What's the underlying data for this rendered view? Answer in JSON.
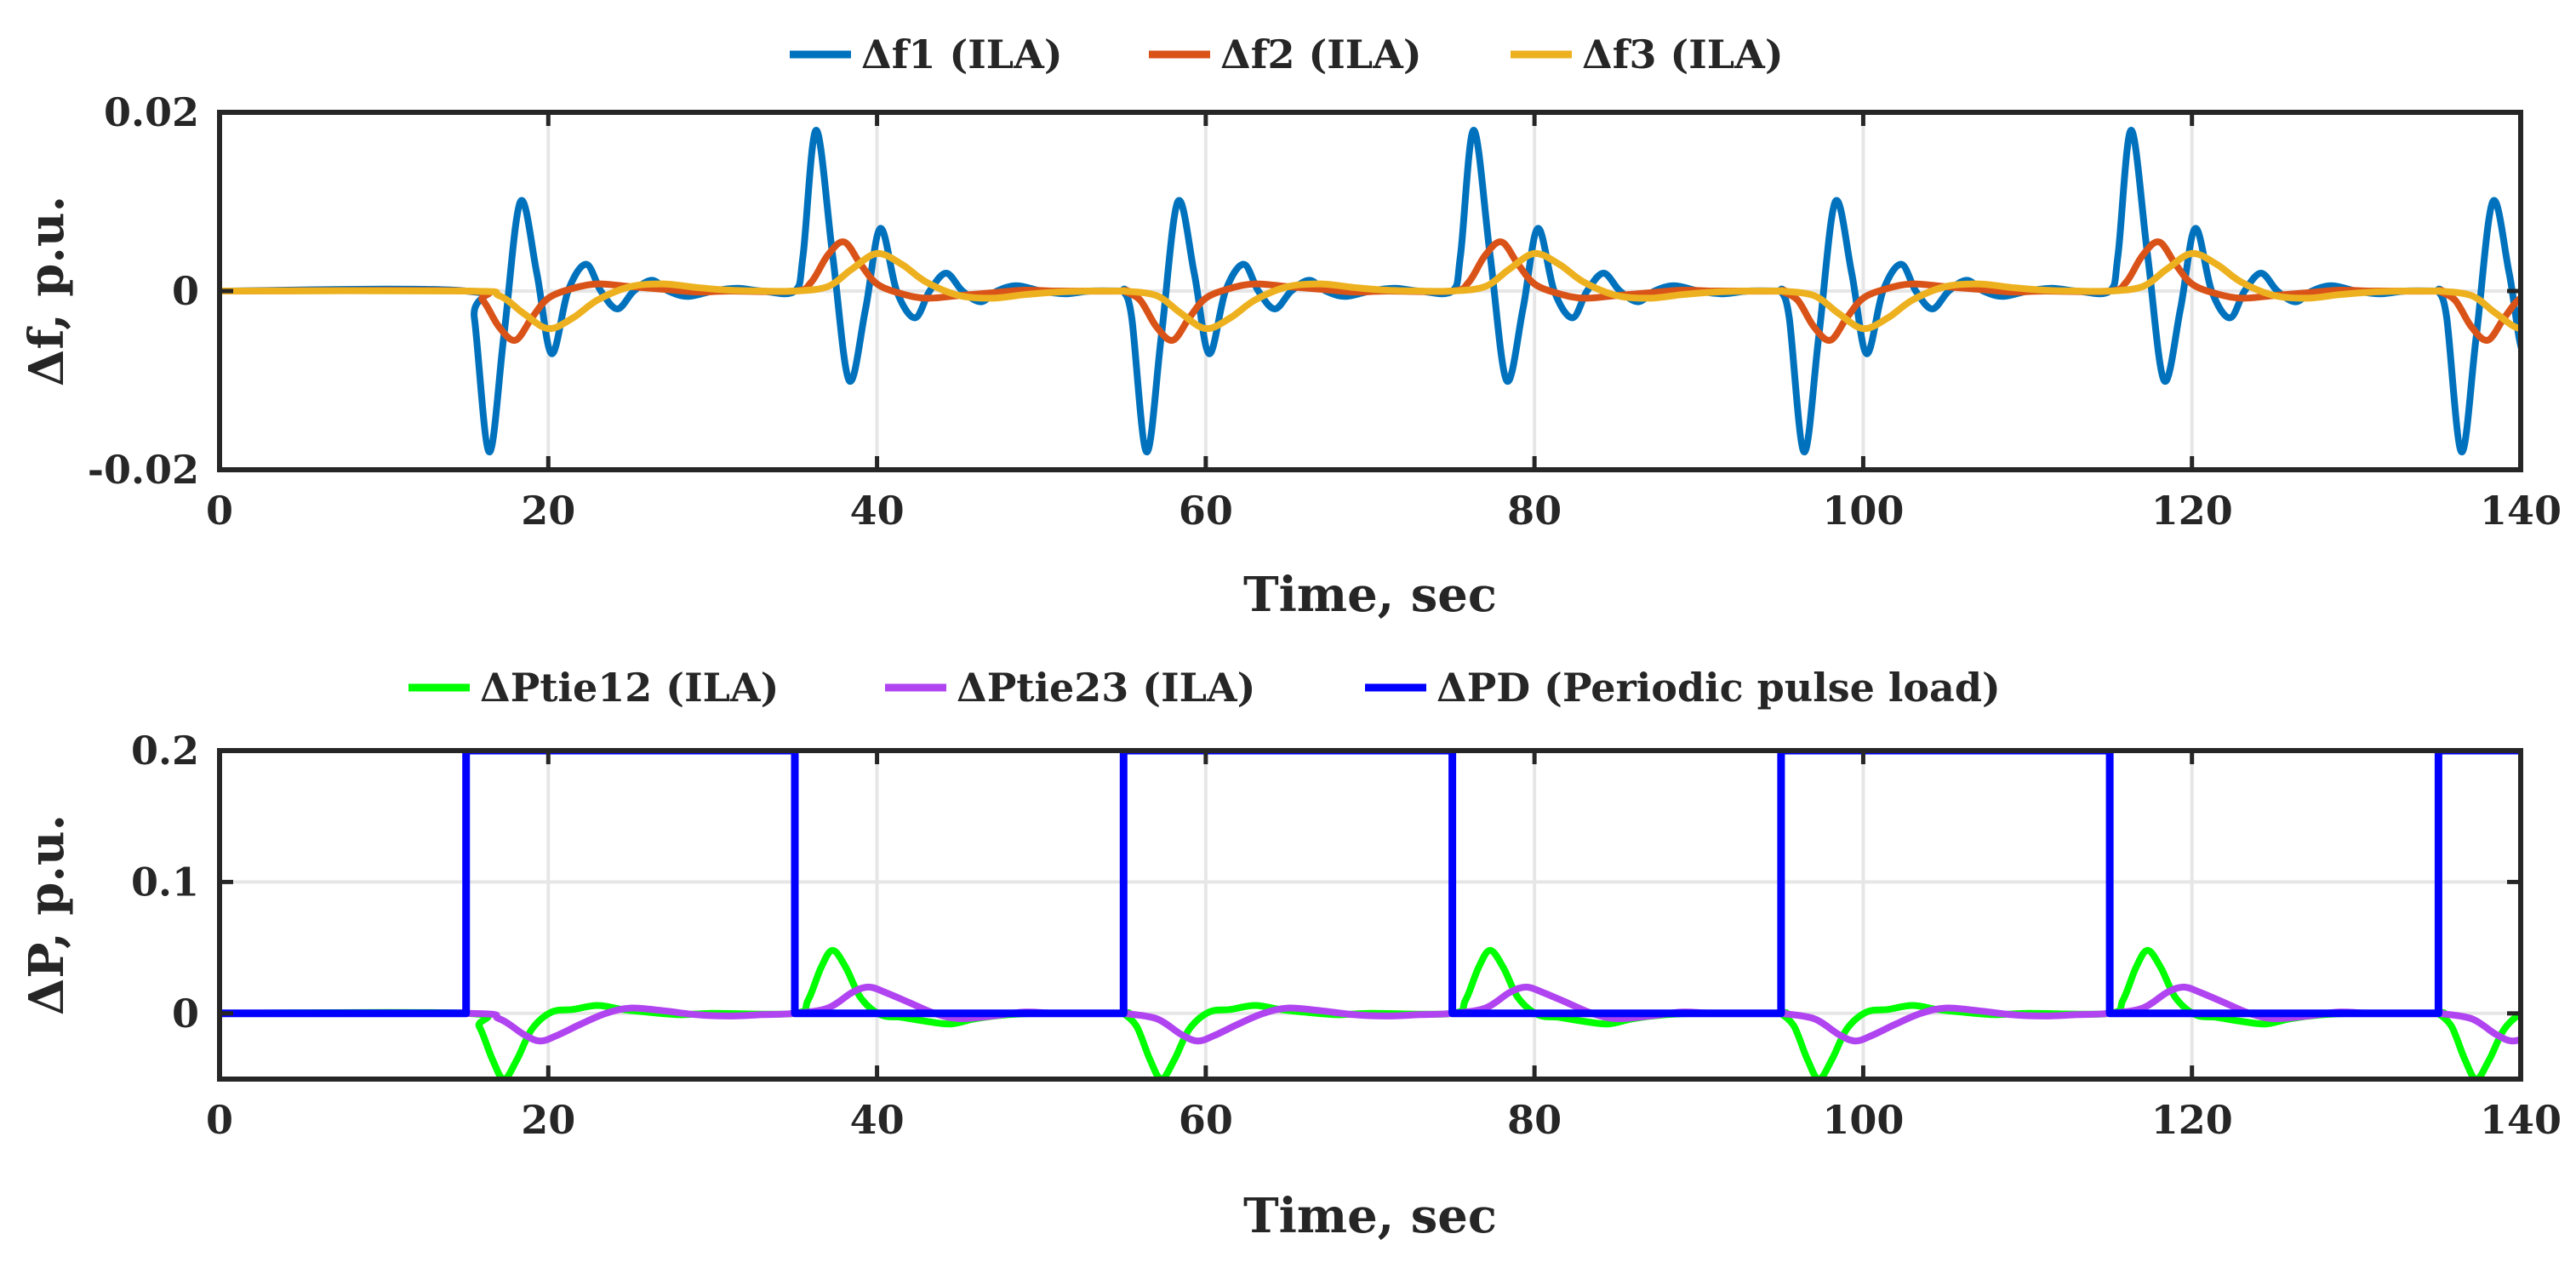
{
  "chart_data": [
    {
      "type": "line",
      "xlabel": "Time, sec",
      "ylabel": "Δf, p.u.",
      "xlim": [
        0,
        140
      ],
      "ylim": [
        -0.02,
        0.02
      ],
      "xticks": [
        0,
        20,
        40,
        60,
        80,
        100,
        120,
        140
      ],
      "xtick_labels": [
        "0",
        "20",
        "40",
        "60",
        "80",
        "100",
        "120",
        "140"
      ],
      "yticks": [
        -0.02,
        0,
        0.02
      ],
      "ytick_labels": [
        "-0.02",
        "0",
        "0.02"
      ],
      "grid": true,
      "legend_position": "top-center",
      "period": 40,
      "series": [
        {
          "name": "Δf1 (ILA)",
          "color": "#0072BD",
          "stroke": 8,
          "points": [
            [
              0,
              0
            ],
            [
              15,
              0
            ],
            [
              15.5,
              -0.003
            ],
            [
              16.4,
              -0.018
            ],
            [
              17.3,
              -0.005
            ],
            [
              18.3,
              0.01
            ],
            [
              19.3,
              0.002
            ],
            [
              20.2,
              -0.007
            ],
            [
              21.2,
              0
            ],
            [
              22.3,
              0.003
            ],
            [
              23.2,
              0
            ],
            [
              24.2,
              -0.002
            ],
            [
              25.2,
              0
            ],
            [
              26.3,
              0.0012
            ],
            [
              27.3,
              0
            ],
            [
              28.5,
              -0.0006
            ],
            [
              30,
              0
            ],
            [
              31.5,
              0.0003
            ],
            [
              33,
              0
            ],
            [
              35,
              0
            ],
            [
              35.5,
              0.004
            ],
            [
              36.3,
              0.018
            ],
            [
              37.3,
              0.004
            ],
            [
              38.3,
              -0.01
            ],
            [
              39.3,
              -0.002
            ],
            [
              40.2,
              0.007
            ],
            [
              41.2,
              0
            ],
            [
              42.3,
              -0.003
            ],
            [
              43.2,
              0
            ],
            [
              44.2,
              0.002
            ],
            [
              45.2,
              0
            ],
            [
              46.3,
              -0.0012
            ],
            [
              47.3,
              0
            ],
            [
              48.5,
              0.0006
            ],
            [
              50,
              0
            ],
            [
              51.5,
              -0.0003
            ],
            [
              53,
              0
            ],
            [
              55,
              0
            ]
          ]
        },
        {
          "name": "Δf2 (ILA)",
          "color": "#D95319",
          "stroke": 8,
          "points": [
            [
              0,
              0
            ],
            [
              15,
              0
            ],
            [
              16,
              -0.001
            ],
            [
              17,
              -0.004
            ],
            [
              18,
              -0.0055
            ],
            [
              19,
              -0.003
            ],
            [
              20,
              -0.0008
            ],
            [
              21.5,
              0.0003
            ],
            [
              23,
              0.0008
            ],
            [
              25,
              0.0005
            ],
            [
              27,
              0.0002
            ],
            [
              29,
              -0.0001
            ],
            [
              31,
              0
            ],
            [
              35,
              0
            ],
            [
              36,
              0.001
            ],
            [
              37,
              0.004
            ],
            [
              38,
              0.0055
            ],
            [
              39,
              0.003
            ],
            [
              40,
              0.0008
            ],
            [
              41.5,
              -0.0003
            ],
            [
              43,
              -0.0008
            ],
            [
              45,
              -0.0005
            ],
            [
              47,
              -0.0002
            ],
            [
              49,
              0.0001
            ],
            [
              51,
              0
            ],
            [
              55,
              0
            ]
          ]
        },
        {
          "name": "Δf3 (ILA)",
          "color": "#EDB120",
          "stroke": 8,
          "points": [
            [
              0,
              0
            ],
            [
              15,
              0
            ],
            [
              17,
              -0.0005
            ],
            [
              18.5,
              -0.0025
            ],
            [
              20,
              -0.0042
            ],
            [
              21.5,
              -0.003
            ],
            [
              23,
              -0.001
            ],
            [
              25,
              0.0005
            ],
            [
              27,
              0.0008
            ],
            [
              29,
              0.0004
            ],
            [
              31,
              0.0001
            ],
            [
              33,
              0
            ],
            [
              35,
              0
            ],
            [
              37,
              0.0005
            ],
            [
              38.5,
              0.0025
            ],
            [
              40,
              0.0042
            ],
            [
              41.5,
              0.003
            ],
            [
              43,
              0.001
            ],
            [
              45,
              -0.0005
            ],
            [
              47,
              -0.0008
            ],
            [
              49,
              -0.0004
            ],
            [
              51,
              -0.0001
            ],
            [
              53,
              0
            ],
            [
              55,
              0
            ]
          ]
        }
      ]
    },
    {
      "type": "line",
      "xlabel": "Time, sec",
      "ylabel": "ΔP, p.u.",
      "xlim": [
        0,
        140
      ],
      "ylim": [
        -0.05,
        0.2
      ],
      "xticks": [
        0,
        20,
        40,
        60,
        80,
        100,
        120,
        140
      ],
      "xtick_labels": [
        "0",
        "20",
        "40",
        "60",
        "80",
        "100",
        "120",
        "140"
      ],
      "yticks": [
        0,
        0.1,
        0.2
      ],
      "ytick_labels": [
        "0",
        "0.1",
        "0.2"
      ],
      "grid": true,
      "legend_position": "top-center",
      "period": 40,
      "series": [
        {
          "name": "ΔPtie12 (ILA)",
          "color": "#00FF00",
          "stroke": 8,
          "points": [
            [
              0,
              0
            ],
            [
              15,
              0
            ],
            [
              15.8,
              -0.01
            ],
            [
              16.6,
              -0.035
            ],
            [
              17.3,
              -0.05
            ],
            [
              18.1,
              -0.035
            ],
            [
              19,
              -0.012
            ],
            [
              20.2,
              0.001
            ],
            [
              21.5,
              0.003
            ],
            [
              23,
              0.006
            ],
            [
              24.5,
              0.003
            ],
            [
              26,
              0.001
            ],
            [
              28,
              -0.001
            ],
            [
              30,
              0
            ],
            [
              35,
              0
            ],
            [
              35.8,
              0.01
            ],
            [
              36.6,
              0.035
            ],
            [
              37.3,
              0.048
            ],
            [
              38.1,
              0.035
            ],
            [
              39,
              0.012
            ],
            [
              40.2,
              -0.001
            ],
            [
              41.5,
              -0.003
            ],
            [
              43,
              -0.006
            ],
            [
              44.5,
              -0.008
            ],
            [
              46,
              -0.004
            ],
            [
              48,
              -0.001
            ],
            [
              50,
              0
            ],
            [
              55,
              0
            ]
          ]
        },
        {
          "name": "ΔPtie23 (ILA)",
          "color": "#B044F0",
          "stroke": 8,
          "points": [
            [
              0,
              0
            ],
            [
              15,
              0
            ],
            [
              17,
              -0.004
            ],
            [
              18.5,
              -0.016
            ],
            [
              19.5,
              -0.021
            ],
            [
              20.5,
              -0.017
            ],
            [
              22,
              -0.008
            ],
            [
              23.5,
              0
            ],
            [
              25,
              0.004
            ],
            [
              27,
              0.002
            ],
            [
              29,
              -0.001
            ],
            [
              31,
              -0.002
            ],
            [
              33,
              -0.001
            ],
            [
              35,
              0
            ],
            [
              37,
              0.004
            ],
            [
              38.5,
              0.016
            ],
            [
              39.5,
              0.02
            ],
            [
              40.5,
              0.016
            ],
            [
              42,
              0.008
            ],
            [
              43.5,
              0
            ],
            [
              45,
              -0.004
            ],
            [
              47,
              -0.002
            ],
            [
              49,
              0.001
            ],
            [
              51,
              0
            ],
            [
              55,
              0
            ]
          ]
        },
        {
          "name": "ΔPD (Periodic pulse load)",
          "color": "#0000FF",
          "stroke": 9,
          "points": [
            [
              0,
              0
            ],
            [
              15,
              0
            ],
            [
              15,
              0.2
            ],
            [
              35,
              0.2
            ],
            [
              35,
              0
            ],
            [
              55,
              0
            ]
          ]
        }
      ]
    }
  ]
}
